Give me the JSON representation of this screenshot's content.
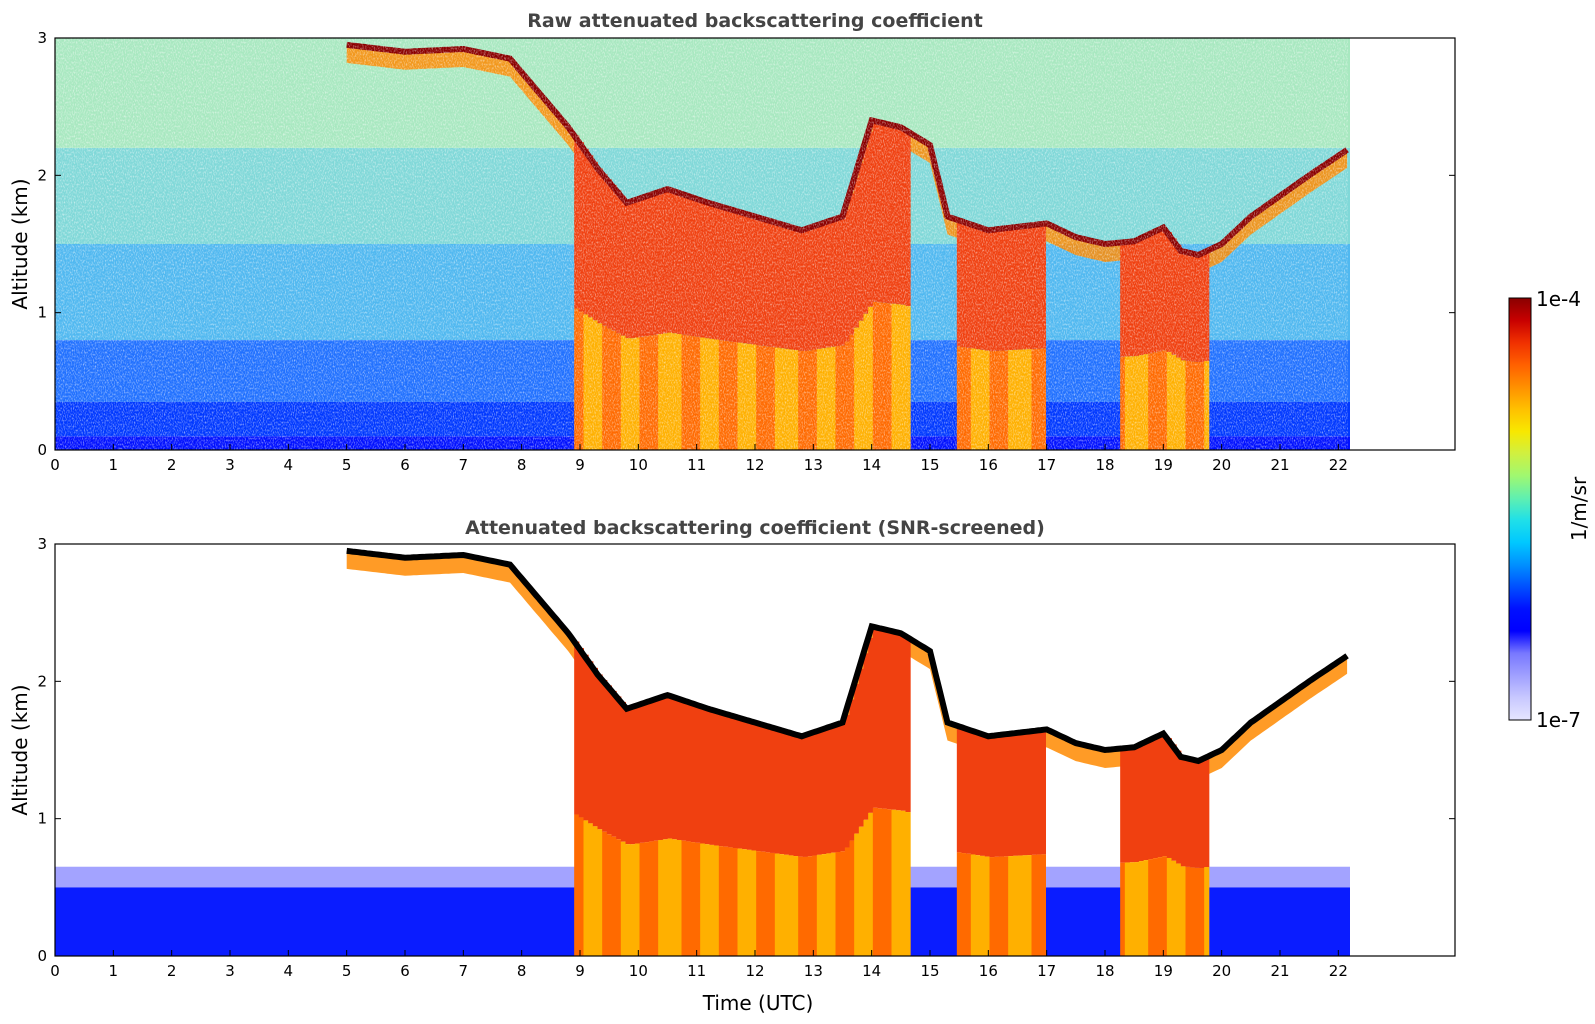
{
  "figure": {
    "colorbar": {
      "top_label": "1e-4",
      "bottom_label": "1e-7",
      "unit_label": "1/m/sr",
      "colors": [
        "#e6e6ff",
        "#c8c8ff",
        "#a0a0ff",
        "#7878ff",
        "#0000ff",
        "#0010ff",
        "#0050ff",
        "#0090ff",
        "#00c8ff",
        "#20e0e8",
        "#60f0b0",
        "#a0f870",
        "#d0f040",
        "#f8e800",
        "#ffc000",
        "#ff9000",
        "#ff6000",
        "#f03000",
        "#c80000",
        "#8a0000"
      ]
    }
  },
  "chart_data": [
    {
      "type": "heatmap",
      "title": "Raw attenuated backscattering coefficient",
      "xlabel": "",
      "ylabel": "Altitude (km)",
      "xlim": [
        0,
        24
      ],
      "ylim": [
        0,
        3
      ],
      "x_ticks": [
        "0",
        "1",
        "2",
        "3",
        "4",
        "5",
        "6",
        "7",
        "8",
        "9",
        "10",
        "11",
        "12",
        "13",
        "14",
        "15",
        "16",
        "17",
        "18",
        "19",
        "20",
        "21",
        "22"
      ],
      "y_ticks": [
        "0",
        "1",
        "2",
        "3"
      ],
      "data_end_time": 22.2,
      "cloud_top_km": {
        "x": [
          5.0,
          6.0,
          7.0,
          7.8,
          8.3,
          8.8,
          9.3,
          9.8,
          10.5,
          11.2,
          12.0,
          12.8,
          13.5,
          14.0,
          14.5,
          15.0,
          15.3,
          16.0,
          17.0,
          17.5,
          18.0,
          18.5,
          19.0,
          19.3,
          19.6,
          20.0,
          20.5,
          21.0,
          21.5,
          22.2
        ],
        "y": [
          2.95,
          2.9,
          2.92,
          2.85,
          2.6,
          2.35,
          2.05,
          1.8,
          1.9,
          1.8,
          1.7,
          1.6,
          1.7,
          2.4,
          2.35,
          2.22,
          1.7,
          1.6,
          1.65,
          1.55,
          1.5,
          1.52,
          1.62,
          1.45,
          1.42,
          1.5,
          1.7,
          1.85,
          2.0,
          2.2
        ]
      },
      "low_cloud_periods_utc": [
        [
          8.9,
          14.6
        ],
        [
          15.4,
          16.9
        ],
        [
          18.2,
          19.7
        ]
      ],
      "background_signal": "noisy clear-air signal everywhere else"
    },
    {
      "type": "heatmap",
      "title": "Attenuated backscattering coefficient (SNR-screened)",
      "xlabel": "Time (UTC)",
      "ylabel": "Altitude (km)",
      "xlim": [
        0,
        24
      ],
      "ylim": [
        0,
        3
      ],
      "x_ticks": [
        "0",
        "1",
        "2",
        "3",
        "4",
        "5",
        "6",
        "7",
        "8",
        "9",
        "10",
        "11",
        "12",
        "13",
        "14",
        "15",
        "16",
        "17",
        "18",
        "19",
        "20",
        "21",
        "22"
      ],
      "y_ticks": [
        "0",
        "1",
        "2",
        "3"
      ],
      "data_end_time": 22.2,
      "cloud_top_km": {
        "x": [
          5.0,
          6.0,
          7.0,
          7.8,
          8.3,
          8.8,
          9.3,
          9.8,
          10.5,
          11.2,
          12.0,
          12.8,
          13.5,
          14.0,
          14.5,
          15.0,
          15.3,
          16.0,
          17.0,
          17.5,
          18.0,
          18.5,
          19.0,
          19.3,
          19.6,
          20.0,
          20.5,
          21.0,
          21.5,
          22.2
        ],
        "y": [
          2.95,
          2.9,
          2.92,
          2.85,
          2.6,
          2.35,
          2.05,
          1.8,
          1.9,
          1.8,
          1.7,
          1.6,
          1.7,
          2.4,
          2.35,
          2.22,
          1.7,
          1.6,
          1.65,
          1.55,
          1.5,
          1.52,
          1.62,
          1.45,
          1.42,
          1.5,
          1.7,
          1.85,
          2.0,
          2.2
        ]
      },
      "low_cloud_periods_utc": [
        [
          8.9,
          14.6
        ],
        [
          15.4,
          16.9
        ],
        [
          18.2,
          19.7
        ]
      ],
      "background_signal": "noise removed above the boundary layer (about 0.6 km)"
    }
  ]
}
